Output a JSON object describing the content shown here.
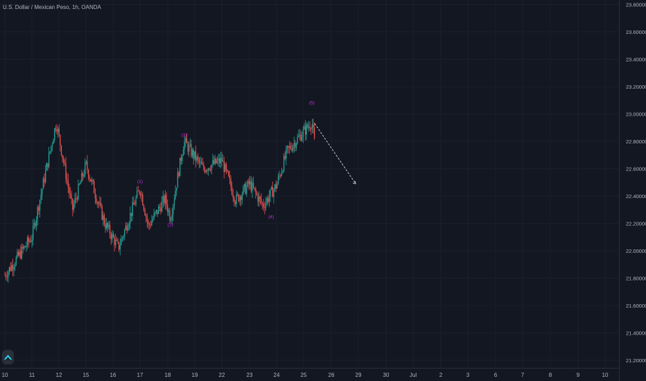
{
  "header": {
    "title": "U.S. Dollar / Mexican Peso, 1h, OANDA"
  },
  "colors": {
    "background": "#131722",
    "up": "#26a69a",
    "down": "#ef5350",
    "wave": "#c82dde",
    "projection": "#c8c8c8",
    "axis_text": "#b2b5be"
  },
  "icons": {
    "logo": "tradingview-logo-icon"
  },
  "price_axis": {
    "labels": [
      "23.80000",
      "23.60000",
      "23.40000",
      "23.20000",
      "23.00000",
      "22.80000",
      "22.60000",
      "22.40000",
      "22.20000",
      "22.00000",
      "21.80000",
      "21.60000",
      "21.40000",
      "21.20000"
    ]
  },
  "time_axis": {
    "labels": [
      "10",
      "11",
      "12",
      "15",
      "16",
      "17",
      "18",
      "19",
      "22",
      "23",
      "24",
      "25",
      "26",
      "29",
      "30",
      "Jul",
      "2",
      "3",
      "6",
      "7",
      "8",
      "9",
      "10"
    ]
  },
  "wave_labels": [
    "(1)",
    "(2)",
    "(3)",
    "(4)",
    "(5)"
  ],
  "chart_data": {
    "type": "candlestick",
    "symbol": "U.S. Dollar / Mexican Peso",
    "interval": "1h",
    "source": "OANDA",
    "ylim": [
      21.12,
      23.86
    ],
    "key_points": [
      {
        "x": "10",
        "y": 21.82
      },
      {
        "x": "11",
        "y": 22.1
      },
      {
        "x": "11.9",
        "y": 22.94
      },
      {
        "x": "12.5",
        "y": 22.3
      },
      {
        "x": "15",
        "y": 22.63
      },
      {
        "x": "15.7",
        "y": 22.2
      },
      {
        "x": "16.2",
        "y": 22.02
      },
      {
        "x": "17",
        "y": 22.46
      },
      {
        "x": "17.3",
        "y": 22.18
      },
      {
        "x": "17.9",
        "y": 22.38
      },
      {
        "x": "18.1",
        "y": 22.24
      },
      {
        "x": "18.6",
        "y": 22.8
      },
      {
        "x": "19.3",
        "y": 22.6
      },
      {
        "x": "22",
        "y": 22.66
      },
      {
        "x": "22.5",
        "y": 22.37
      },
      {
        "x": "23",
        "y": 22.49
      },
      {
        "x": "23.5",
        "y": 22.33
      },
      {
        "x": "24",
        "y": 22.48
      },
      {
        "x": "24.4",
        "y": 22.73
      },
      {
        "x": "25",
        "y": 22.87
      },
      {
        "x": "25.3",
        "y": 22.94
      },
      {
        "x": "25.4",
        "y": 22.78
      }
    ],
    "waves": [
      {
        "label": "(1)",
        "x": "17",
        "y": 22.46
      },
      {
        "label": "(2)",
        "x": "18.1",
        "y": 22.24
      },
      {
        "label": "(3)",
        "x": "18.6",
        "y": 22.8
      },
      {
        "label": "(4)",
        "x": "23.8",
        "y": 22.3
      },
      {
        "label": "(5)",
        "x": "25.3",
        "y": 22.94
      }
    ],
    "projection": {
      "from": {
        "x": "25.4",
        "y": 22.93
      },
      "to": {
        "x": "26.9",
        "y": 22.49
      }
    }
  }
}
